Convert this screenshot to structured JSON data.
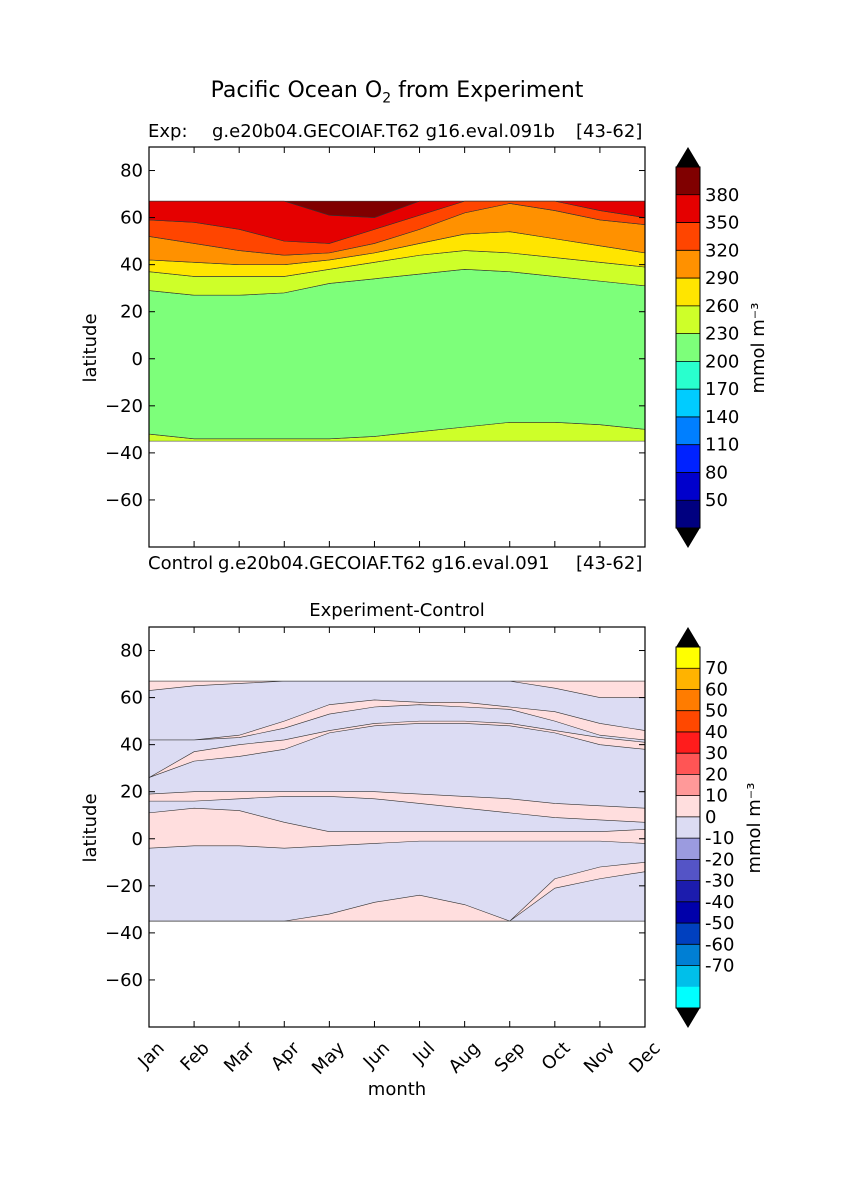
{
  "title": {
    "main": "Pacific Ocean O",
    "subscript": "2",
    "tail": " from Experiment"
  },
  "panel_top": {
    "label_left": "Exp:",
    "label_case": "g.e20b04.GECOIAF.T62 g16.eval.091b",
    "label_depth": "[43-62]",
    "bottom_left": "Control",
    "bottom_case": "g.e20b04.GECOIAF.T62 g16.eval.091",
    "bottom_depth": "[43-62]",
    "ylabel": "latitude",
    "colorbar_label": "mmol m⁻³"
  },
  "panel_bottom": {
    "title": "Experiment-Control",
    "ylabel": "latitude",
    "xlabel": "month",
    "colorbar_label": "mmol m⁻³"
  },
  "colors": {
    "top_levels": [
      "#000080",
      "#0000cc",
      "#0022ff",
      "#007fff",
      "#00ccff",
      "#29ffce",
      "#7dff7a",
      "#ceff29",
      "#ffe500",
      "#ff9100",
      "#ff4500",
      "#e50000",
      "#800000"
    ],
    "diff_levels": [
      "#00ffff",
      "#00bfea",
      "#007fd4",
      "#0040bf",
      "#0000aa",
      "#1c1cad",
      "#5454c6",
      "#9b9bdf",
      "#dcdcf3",
      "#ffdede",
      "#ff9999",
      "#ff5555",
      "#ff1c1c",
      "#ff4800",
      "#ff7c00",
      "#ffb300",
      "#ffff00"
    ]
  },
  "chart_data": [
    {
      "type": "heatmap",
      "title": "Exp:    g.e20b04.GECOIAF.T62 g16.eval.091b[43-62]",
      "xlabel": "",
      "ylabel": "latitude",
      "x_categories": [
        "Jan",
        "Feb",
        "Mar",
        "Apr",
        "May",
        "Jun",
        "Jul",
        "Aug",
        "Sep",
        "Oct",
        "Nov",
        "Dec"
      ],
      "ylim": [
        -80,
        90
      ],
      "yticks": [
        80,
        60,
        40,
        20,
        0,
        -20,
        -40,
        -60
      ],
      "data_lat_range": [
        -35,
        67
      ],
      "colorbar_ticks": [
        380,
        350,
        320,
        290,
        260,
        230,
        200,
        170,
        140,
        110,
        80,
        50
      ],
      "colorbar_units": "mmol m⁻³",
      "level_boundaries": {
        "200/230_south": [
          -32,
          -34,
          -34,
          -34,
          -34,
          -33,
          -31,
          -29,
          -27,
          -27,
          -28,
          -30
        ],
        "200/230_north": [
          29,
          27,
          27,
          28,
          32,
          34,
          36,
          38,
          37,
          35,
          33,
          31
        ],
        "230/260": [
          37,
          35,
          35,
          35,
          38,
          41,
          44,
          46,
          45,
          43,
          41,
          39
        ],
        "260/290": [
          42,
          41,
          40,
          40,
          42,
          45,
          49,
          53,
          54,
          51,
          48,
          45
        ],
        "290/320": [
          52,
          49,
          46,
          44,
          45,
          49,
          55,
          62,
          66,
          63,
          59,
          57
        ],
        "320/350": [
          59,
          58,
          55,
          50,
          49,
          55,
          61,
          67,
          67,
          67,
          63,
          60
        ],
        "350/380": [
          67,
          67,
          67,
          67,
          61,
          60,
          67,
          67,
          67,
          67,
          67,
          67
        ]
      }
    },
    {
      "type": "heatmap",
      "title": "Experiment-Control",
      "xlabel": "month",
      "ylabel": "latitude",
      "x_categories": [
        "Jan",
        "Feb",
        "Mar",
        "Apr",
        "May",
        "Jun",
        "Jul",
        "Aug",
        "Sep",
        "Oct",
        "Nov",
        "Dec"
      ],
      "ylim": [
        -80,
        90
      ],
      "yticks": [
        80,
        60,
        40,
        20,
        0,
        -20,
        -40,
        -60
      ],
      "data_lat_range": [
        -35,
        67
      ],
      "colorbar_ticks": [
        70,
        60,
        50,
        40,
        30,
        20,
        10,
        0,
        -10,
        -20,
        -30,
        -40,
        -50,
        -60,
        -70
      ],
      "colorbar_units": "mmol m⁻³",
      "dominant_levels": [
        "-10 to 0",
        "0 to 10"
      ]
    }
  ]
}
